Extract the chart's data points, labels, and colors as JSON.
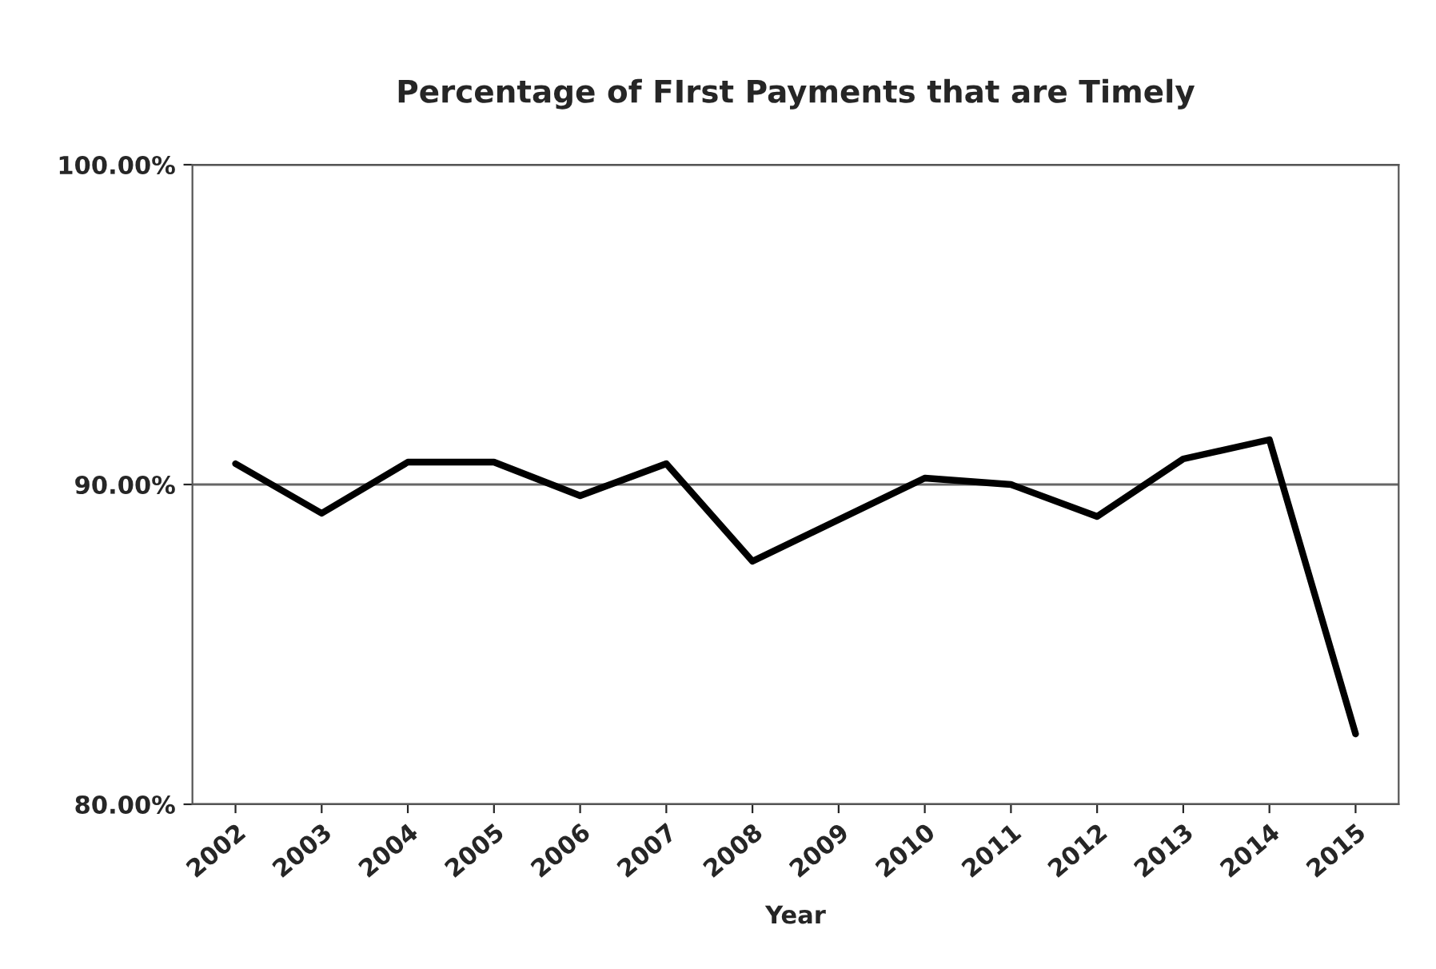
{
  "chart_data": {
    "type": "line",
    "title": "Percentage of FIrst Payments that are Timely",
    "xlabel": "Year",
    "categories": [
      "2002",
      "2003",
      "2004",
      "2005",
      "2006",
      "2007",
      "2008",
      "2009",
      "2010",
      "2011",
      "2012",
      "2013",
      "2014",
      "2015"
    ],
    "series": [
      {
        "color": "#000000",
        "values": [
          90.65,
          89.1,
          90.7,
          90.7,
          89.65,
          90.65,
          87.6,
          88.9,
          90.2,
          90.0,
          89.0,
          90.8,
          91.4,
          82.2
        ]
      }
    ],
    "ylim": [
      80,
      100
    ],
    "yticks": [
      {
        "value": 80,
        "label": "80.00%"
      },
      {
        "value": 90,
        "label": "90.00%"
      },
      {
        "value": 100,
        "label": "100.00%"
      }
    ],
    "grid": "y",
    "marker": "none",
    "line_style": "solid"
  }
}
